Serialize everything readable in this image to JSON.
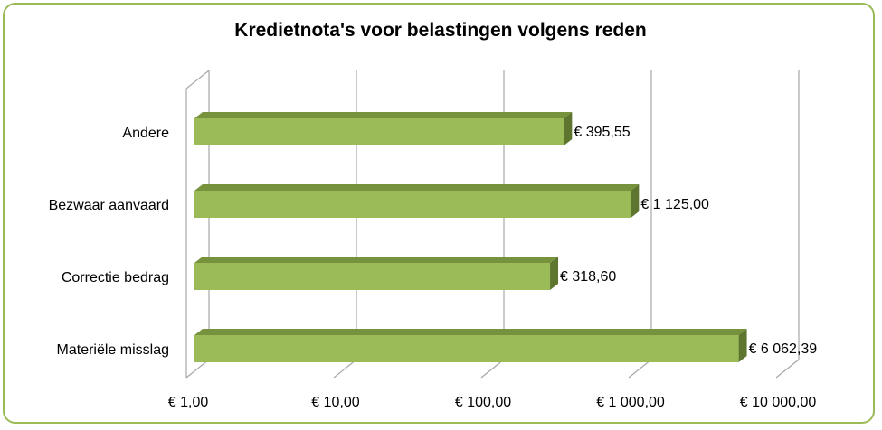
{
  "chart_data": {
    "type": "bar",
    "orientation": "horizontal",
    "title": "Kredietnota's voor belastingen volgens reden",
    "categories": [
      "Andere",
      "Bezwaar aanvaard",
      "Correctie bedrag",
      "Materiële misslag"
    ],
    "values": [
      395.55,
      1125.0,
      318.6,
      6062.39
    ],
    "data_labels": [
      "€  395,55",
      "€ 1 125,00",
      "€  318,60",
      "€ 6 062,39"
    ],
    "x_scale": "log",
    "xlim": [
      1,
      10000
    ],
    "x_ticks": [
      1,
      10,
      100,
      1000,
      10000
    ],
    "x_tick_labels": [
      "€  1,00",
      "€  10,00",
      "€  100,00",
      "€ 1 000,00",
      "€ 10 000,00"
    ],
    "grid": true,
    "legend": "none",
    "colors": {
      "bar_front": "#9bbb59",
      "bar_top": "#76923c",
      "bar_side": "#5e7530",
      "frame_border": "#9bbb59",
      "gridline": "#a6a6a6"
    }
  }
}
